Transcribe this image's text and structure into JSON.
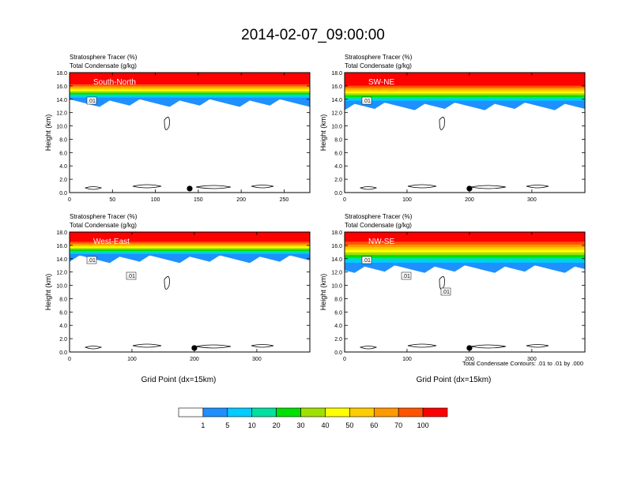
{
  "figure": {
    "title": "2014-02-07_09:00:00",
    "footnote": "Total Condensate Contours: .01 to .01 by .000",
    "xlabel": "Grid Point (dx=15km)",
    "ylabel": "Height (km)",
    "subtitle_line1": "Stratosphere Tracer   (%)",
    "subtitle_line2": "Total Condensate   (g/kg)",
    "colors": {
      "bg": "#ffffff",
      "tracer_levels": [
        "#ffffff",
        "#1e90ff",
        "#00ccff",
        "#00e0a0",
        "#00e000",
        "#a0e000",
        "#ffff00",
        "#ffcc00",
        "#ff9900",
        "#ff5500",
        "#ff0000"
      ]
    }
  },
  "colorbar": {
    "labels": [
      "1",
      "5",
      "10",
      "20",
      "30",
      "40",
      "50",
      "60",
      "70",
      "100"
    ],
    "colors": [
      "#ffffff",
      "#1e90ff",
      "#00ccff",
      "#00e0a0",
      "#00e000",
      "#a0e000",
      "#ffff00",
      "#ffcc00",
      "#ff9900",
      "#ff5500",
      "#ff0000"
    ]
  },
  "chart_data": [
    {
      "type": "heatmap",
      "panel_label": "South-North",
      "xlim": [
        0,
        280
      ],
      "ylim": [
        0,
        18
      ],
      "xticks": [
        "0",
        "50",
        "100",
        "150",
        "200",
        "250"
      ],
      "xtick_values": [
        0,
        50,
        100,
        150,
        200,
        250
      ],
      "yticks": [
        "0.0",
        "2.0",
        "4.0",
        "6.0",
        "8.0",
        "10.0",
        "12.0",
        "14.0",
        "16.0",
        "18.0"
      ],
      "marker_x": 140,
      "contour_labels": [
        ".01"
      ],
      "tracer_top_km": 16.2,
      "tracer_bottom_km": 14.0
    },
    {
      "type": "heatmap",
      "panel_label": "SW-NE",
      "xlim": [
        0,
        385
      ],
      "ylim": [
        0,
        18
      ],
      "xticks": [
        "0",
        "100",
        "200",
        "300"
      ],
      "xtick_values": [
        0,
        100,
        200,
        300
      ],
      "yticks": [
        "0.0",
        "2.0",
        "4.0",
        "6.0",
        "8.0",
        "10.0",
        "12.0",
        "14.0",
        "16.0",
        "18.0"
      ],
      "marker_x": 200,
      "contour_labels": [
        ".01"
      ],
      "tracer_top_km": 16.0,
      "tracer_bottom_km": 13.5
    },
    {
      "type": "heatmap",
      "panel_label": "West-East",
      "xlim": [
        0,
        385
      ],
      "ylim": [
        0,
        18
      ],
      "xticks": [
        "0",
        "100",
        "200",
        "300"
      ],
      "xtick_values": [
        0,
        100,
        200,
        300
      ],
      "yticks": [
        "0.0",
        "2.0",
        "4.0",
        "6.0",
        "8.0",
        "10.0",
        "12.0",
        "14.0",
        "16.0",
        "18.0"
      ],
      "marker_x": 200,
      "contour_labels": [
        ".01",
        ".01"
      ],
      "tracer_top_km": 16.5,
      "tracer_bottom_km": 14.5
    },
    {
      "type": "heatmap",
      "panel_label": "NW-SE",
      "xlim": [
        0,
        385
      ],
      "ylim": [
        0,
        18
      ],
      "xticks": [
        "0",
        "100",
        "200",
        "300"
      ],
      "xtick_values": [
        0,
        100,
        200,
        300
      ],
      "yticks": [
        "0.0",
        "2.0",
        "4.0",
        "6.0",
        "8.0",
        "10.0",
        "12.0",
        "14.0",
        "16.0",
        "18.0"
      ],
      "marker_x": 200,
      "contour_labels": [
        ".01",
        ".01",
        ".01"
      ],
      "tracer_top_km": 16.5,
      "tracer_bottom_km": 13.0
    }
  ]
}
